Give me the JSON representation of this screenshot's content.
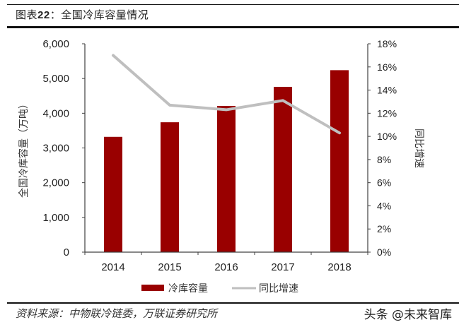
{
  "header": {
    "title_prefix": "图表",
    "title_number": "22",
    "title_text": "：全国冷库容量情况"
  },
  "footer": {
    "source": "资料来源：中物联冷链委，万联证券研究所",
    "watermark": "头条 @未来智库"
  },
  "colors": {
    "bar": "#990000",
    "line": "#BFBFBF",
    "axis": "#404040",
    "rule": "#111111"
  },
  "chart_data": {
    "type": "bar+line",
    "title": "全国冷库容量情况",
    "categories": [
      "2014",
      "2015",
      "2016",
      "2017",
      "2018"
    ],
    "series": [
      {
        "name": "冷库容量",
        "type": "bar",
        "axis": "left",
        "values": [
          3320,
          3740,
          4210,
          4760,
          5240
        ]
      },
      {
        "name": "同比增速",
        "type": "line",
        "axis": "right",
        "values": [
          17.0,
          12.7,
          12.3,
          13.1,
          10.3
        ]
      }
    ],
    "ylabel_left": "全国冷库容量（万吨）",
    "ylabel_right": "同比增速",
    "ylim_left": [
      0,
      6000
    ],
    "yticks_left": [
      "0",
      "1,000",
      "2,000",
      "3,000",
      "4,000",
      "5,000",
      "6,000"
    ],
    "ylim_right": [
      0,
      18
    ],
    "yticks_right": [
      "0%",
      "2%",
      "4%",
      "6%",
      "8%",
      "10%",
      "12%",
      "14%",
      "16%",
      "18%"
    ],
    "grid": false,
    "legend_position": "bottom",
    "legend": [
      "冷库容量",
      "同比增速"
    ]
  }
}
